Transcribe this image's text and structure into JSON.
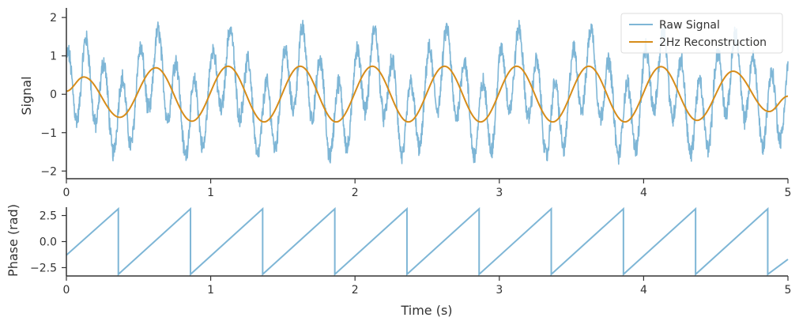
{
  "chart_data": [
    {
      "type": "line",
      "title": "",
      "xlabel": "",
      "ylabel": "Signal",
      "xlim": [
        0,
        5
      ],
      "ylim": [
        -2.2,
        2.25
      ],
      "x_ticks": [
        "0",
        "1",
        "2",
        "3",
        "4",
        "5"
      ],
      "y_ticks": [
        "−2",
        "−1",
        "0",
        "1",
        "2"
      ],
      "x_tick_values": [
        0,
        1,
        2,
        3,
        4,
        5
      ],
      "y_tick_values": [
        -2,
        -1,
        0,
        1,
        2
      ],
      "grid": false,
      "legend_position": "top-right",
      "series": [
        {
          "name": "Raw Signal",
          "color": "#7eb6d6",
          "description_points": {
            "duration_s": 5,
            "dominant_components_hz": [
              2,
              8
            ],
            "amplitude_2hz": 0.7,
            "amplitude_8hz": 1.0,
            "noise": "high-frequency jitter",
            "range": [
              -2.2,
              2.2
            ]
          }
        },
        {
          "name": "2Hz Reconstruction",
          "color": "#d68c1a",
          "frequency_hz": 2,
          "peaks": [
            {
              "t": 0.12,
              "v": 0.45
            },
            {
              "t": 0.62,
              "v": 0.69
            },
            {
              "t": 1.12,
              "v": 0.73
            },
            {
              "t": 1.62,
              "v": 0.73
            },
            {
              "t": 2.12,
              "v": 0.73
            },
            {
              "t": 2.62,
              "v": 0.73
            },
            {
              "t": 3.12,
              "v": 0.73
            },
            {
              "t": 3.62,
              "v": 0.73
            },
            {
              "t": 4.12,
              "v": 0.72
            },
            {
              "t": 4.62,
              "v": 0.6
            }
          ],
          "troughs": [
            {
              "t": 0.37,
              "v": -0.6
            },
            {
              "t": 0.87,
              "v": -0.7
            },
            {
              "t": 1.37,
              "v": -0.72
            },
            {
              "t": 1.87,
              "v": -0.72
            },
            {
              "t": 2.37,
              "v": -0.72
            },
            {
              "t": 2.87,
              "v": -0.72
            },
            {
              "t": 3.37,
              "v": -0.72
            },
            {
              "t": 3.87,
              "v": -0.72
            },
            {
              "t": 4.37,
              "v": -0.68
            },
            {
              "t": 4.87,
              "v": -0.45
            }
          ],
          "start": {
            "t": 0,
            "v": 0.08
          },
          "end": {
            "t": 5,
            "v": -0.05
          }
        }
      ]
    },
    {
      "type": "line",
      "title": "",
      "xlabel": "Time (s)",
      "ylabel": "Phase (rad)",
      "xlim": [
        0,
        5
      ],
      "ylim": [
        -3.3,
        3.3
      ],
      "x_ticks": [
        "0",
        "1",
        "2",
        "3",
        "4",
        "5"
      ],
      "y_ticks": [
        "2.5",
        "0.0",
        "−2.5"
      ],
      "x_tick_values": [
        0,
        1,
        2,
        3,
        4,
        5
      ],
      "y_tick_values": [
        2.5,
        0.0,
        -2.5
      ],
      "grid": false,
      "series": [
        {
          "color": "#7eb6d6",
          "shape": "sawtooth",
          "frequency_hz": 2,
          "start": {
            "t": 0,
            "v": -1.3
          },
          "wrap_times": [
            0.36,
            0.86,
            1.36,
            1.86,
            2.36,
            2.86,
            3.36,
            3.86,
            4.36,
            4.86
          ],
          "wrap_top": 3.1416,
          "wrap_bottom": -3.1416,
          "end": {
            "t": 5,
            "v": -1.7
          }
        }
      ]
    }
  ]
}
